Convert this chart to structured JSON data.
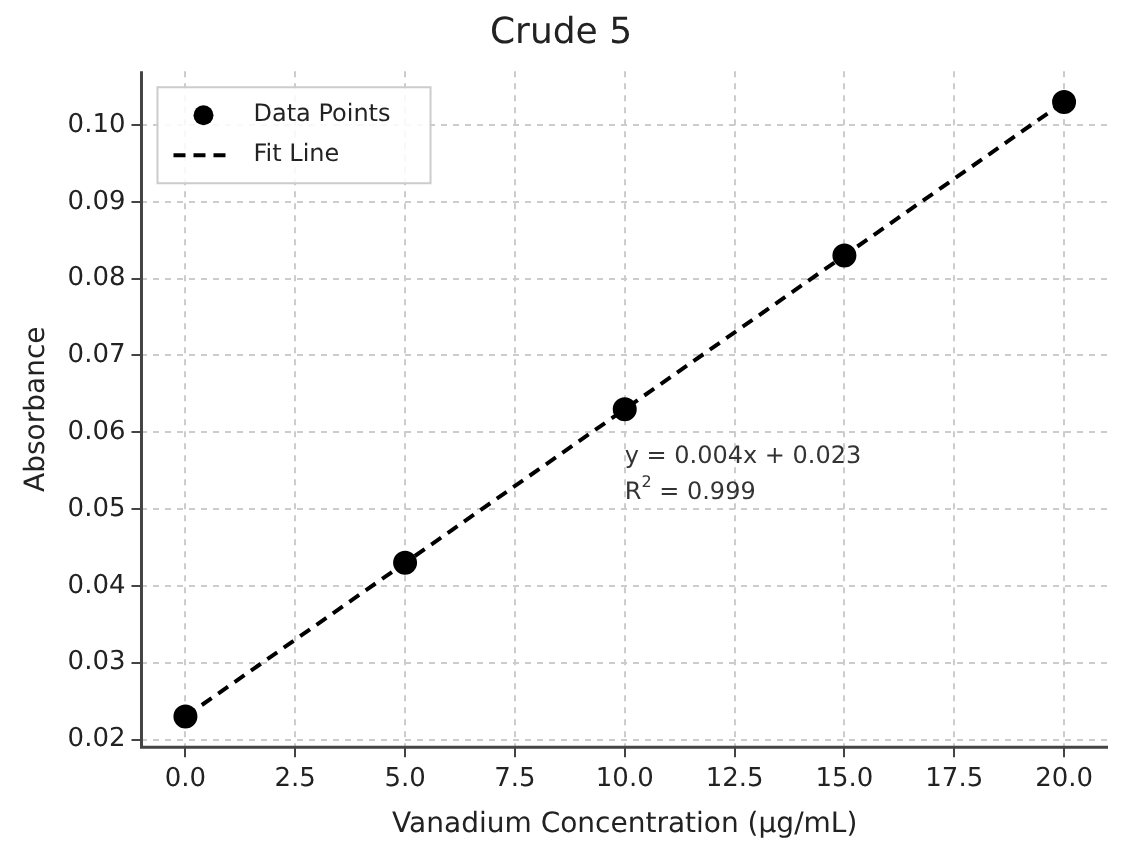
{
  "chart_data": {
    "type": "scatter",
    "title": "Crude 5",
    "xlabel": "Vanadium Concentration (µg/mL)",
    "ylabel": "Absorbance",
    "x": [
      0,
      5,
      10,
      15,
      20
    ],
    "series": [
      {
        "name": "Data Points",
        "type": "scatter",
        "color": "#000000",
        "marker": "circle",
        "values": [
          0.023,
          0.043,
          0.063,
          0.083,
          0.103
        ]
      },
      {
        "name": "Fit Line",
        "type": "line",
        "color": "#000000",
        "line_style": "dashed",
        "marker": "none",
        "x": [
          0,
          20
        ],
        "values": [
          0.023,
          0.103
        ]
      }
    ],
    "xlim": [
      -1,
      21
    ],
    "xticks": [
      {
        "value": 0,
        "label": "0.0"
      },
      {
        "value": 2.5,
        "label": "2.5"
      },
      {
        "value": 5,
        "label": "5.0"
      },
      {
        "value": 7.5,
        "label": "7.5"
      },
      {
        "value": 10,
        "label": "10.0"
      },
      {
        "value": 12.5,
        "label": "12.5"
      },
      {
        "value": 15,
        "label": "15.0"
      },
      {
        "value": 17.5,
        "label": "17.5"
      },
      {
        "value": 20,
        "label": "20.0"
      }
    ],
    "ylim": [
      0.019,
      0.107
    ],
    "yticks": [
      {
        "value": 0.02,
        "label": "0.02"
      },
      {
        "value": 0.03,
        "label": "0.03"
      },
      {
        "value": 0.04,
        "label": "0.04"
      },
      {
        "value": 0.05,
        "label": "0.05"
      },
      {
        "value": 0.06,
        "label": "0.06"
      },
      {
        "value": 0.07,
        "label": "0.07"
      },
      {
        "value": 0.08,
        "label": "0.08"
      },
      {
        "value": 0.09,
        "label": "0.09"
      },
      {
        "value": 0.1,
        "label": "0.10"
      }
    ],
    "annotations": [
      "y = 0.004x + 0.023",
      "R$^{2}$ = 0.999"
    ],
    "grid": true,
    "legend": "top left"
  }
}
